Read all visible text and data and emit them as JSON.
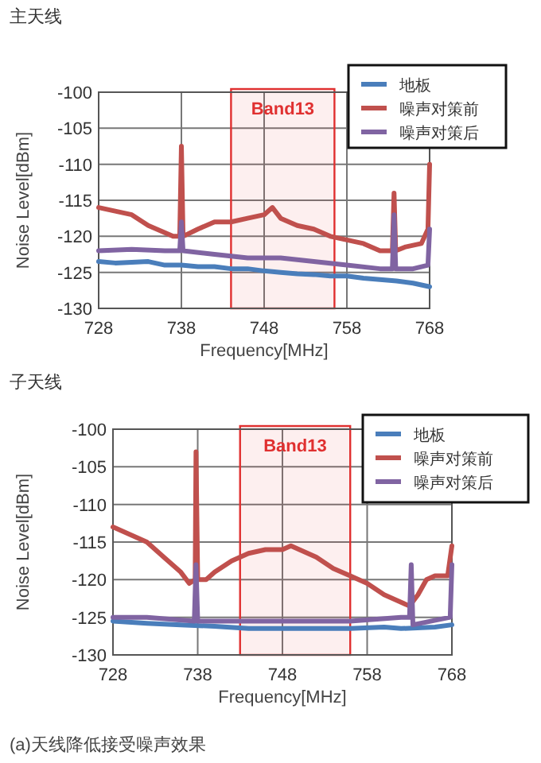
{
  "chart_data": [
    {
      "type": "line",
      "title": "主天线",
      "xlabel": "Frequency[MHz]",
      "ylabel": "Noise Level[dBm]",
      "xlim": [
        728,
        768
      ],
      "xticks": [
        728,
        738,
        748,
        758,
        768
      ],
      "ylim": [
        -130,
        -100
      ],
      "yticks": [
        -130,
        -125,
        -120,
        -115,
        -110,
        -105,
        -100
      ],
      "grid": true,
      "legend": "top right",
      "bands": [
        {
          "axis": "x",
          "from": 744,
          "to": 756.5,
          "label": "Band13",
          "color": "#e03030"
        }
      ],
      "series": [
        {
          "name": "地板",
          "color": "#4a7ebb",
          "x": [
            728,
            730,
            734,
            736,
            738,
            740,
            742,
            744,
            746,
            748,
            750,
            752,
            754,
            756,
            758,
            760,
            762,
            764,
            766,
            768
          ],
          "values": [
            -123.5,
            -123.7,
            -123.5,
            -124,
            -124,
            -124.2,
            -124.2,
            -124.5,
            -124.5,
            -124.8,
            -125,
            -125.2,
            -125.3,
            -125.5,
            -125.5,
            -125.8,
            -126,
            -126.2,
            -126.5,
            -127
          ]
        },
        {
          "name": "噪声对策前",
          "color": "#c0504d",
          "x": [
            728,
            730,
            732,
            734,
            736,
            737,
            737.8,
            738,
            738.2,
            740,
            742,
            744,
            746,
            748,
            749,
            750,
            752,
            754,
            756,
            758,
            760,
            762,
            763.5,
            763.7,
            763.9,
            765,
            767,
            767.8,
            768
          ],
          "values": [
            -116,
            -116.5,
            -117,
            -118.5,
            -119.5,
            -120,
            -120,
            -107.5,
            -120,
            -119,
            -118,
            -118,
            -117.5,
            -117,
            -116,
            -117.5,
            -118.5,
            -119,
            -120,
            -120.5,
            -121,
            -122,
            -122,
            -114,
            -122,
            -121.5,
            -121,
            -119,
            -110
          ]
        },
        {
          "name": "噪声对策后",
          "color": "#8064a2",
          "x": [
            728,
            732,
            736,
            737.8,
            738,
            738.2,
            742,
            746,
            750,
            754,
            758,
            762,
            763.5,
            763.7,
            763.9,
            766,
            767.8,
            768
          ],
          "values": [
            -122,
            -121.8,
            -122,
            -122,
            -118,
            -122,
            -122.5,
            -123,
            -123,
            -123.5,
            -124,
            -124.5,
            -124.5,
            -117,
            -124.5,
            -124.5,
            -124,
            -119
          ]
        }
      ]
    },
    {
      "type": "line",
      "title": "子天线",
      "xlabel": "Frequency[MHz]",
      "ylabel": "Noise Level[dBm]",
      "xlim": [
        728,
        768
      ],
      "xticks": [
        728,
        738,
        748,
        758,
        768
      ],
      "ylim": [
        -130,
        -100
      ],
      "yticks": [
        -130,
        -125,
        -120,
        -115,
        -110,
        -105,
        -100
      ],
      "grid": true,
      "legend": "top right",
      "bands": [
        {
          "axis": "x",
          "from": 743,
          "to": 756,
          "label": "Band13",
          "color": "#e03030"
        }
      ],
      "series": [
        {
          "name": "地板",
          "color": "#4a7ebb",
          "x": [
            728,
            732,
            736,
            740,
            744,
            748,
            750,
            752,
            756,
            760,
            762,
            766,
            768
          ],
          "values": [
            -125.5,
            -125.8,
            -126,
            -126.2,
            -126.5,
            -126.5,
            -126.5,
            -126.5,
            -126.5,
            -126.3,
            -126.5,
            -126.3,
            -126
          ]
        },
        {
          "name": "噪声对策前",
          "color": "#c0504d",
          "x": [
            728,
            730,
            732,
            734,
            736,
            737,
            737.7,
            737.8,
            738,
            739,
            740,
            742,
            744,
            746,
            748,
            749,
            750,
            752,
            754,
            756,
            758,
            760,
            762,
            763,
            764,
            765,
            766,
            767.5,
            768
          ],
          "values": [
            -113,
            -114,
            -115,
            -117,
            -119,
            -120.5,
            -120,
            -103,
            -120,
            -120,
            -119,
            -117.5,
            -116.5,
            -116,
            -116,
            -115.5,
            -116,
            -117,
            -118.5,
            -119.5,
            -120.5,
            -122,
            -123,
            -123.5,
            -122,
            -120,
            -119.5,
            -119.5,
            -115.5
          ]
        },
        {
          "name": "噪声对策后",
          "color": "#8064a2",
          "x": [
            728,
            732,
            737.6,
            737.8,
            738,
            744,
            750,
            756,
            762,
            763,
            763.2,
            763.4,
            767.8,
            768
          ],
          "values": [
            -125,
            -125,
            -125.5,
            -118,
            -125.5,
            -125.5,
            -125.5,
            -125.5,
            -125,
            -125,
            -118,
            -126,
            -125,
            -118
          ]
        }
      ]
    },
    {
      "type": "other",
      "annotations": [
        "(a)天线降低接受噪声效果"
      ]
    }
  ]
}
